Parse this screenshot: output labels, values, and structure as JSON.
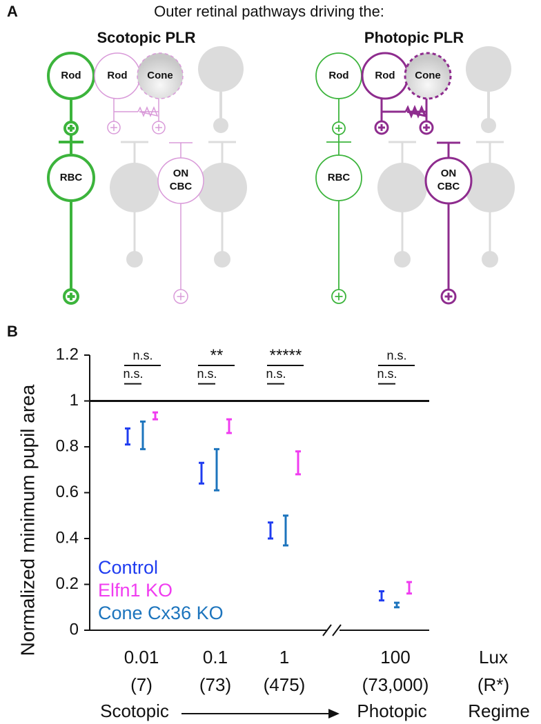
{
  "panel_a": {
    "label": "A",
    "title": "Outer retinal pathways driving the:",
    "panels": [
      {
        "title": "Scotopic PLR",
        "cells": [
          "Rod",
          "Rod",
          "Cone",
          "RBC",
          "ON",
          "CBC"
        ]
      },
      {
        "title": "Photopic PLR",
        "cells": [
          "Rod",
          "Rod",
          "Cone",
          "RBC",
          "ON",
          "CBC"
        ]
      }
    ]
  },
  "chart_data": {
    "type": "errorbar",
    "label": "B",
    "ylabel": "Normalized minimum pupil area",
    "categories": [
      "0.01",
      "0.1",
      "1",
      "100"
    ],
    "r_star": [
      "(7)",
      "(73)",
      "(475)",
      "(73,000)"
    ],
    "extra_labels": [
      "Lux",
      "(R*)",
      "Regime"
    ],
    "regime": [
      "Scotopic",
      "Photopic"
    ],
    "ylim": [
      0,
      1.2
    ],
    "yticks": [
      0,
      0.2,
      0.4,
      0.6,
      0.8,
      1,
      1.2
    ],
    "reference_line": 1,
    "significance_top": [
      "n.s.",
      "**",
      "*****",
      "n.s."
    ],
    "significance_bottom": [
      "n.s.",
      "n.s.",
      "n.s.",
      "n.s."
    ],
    "series": [
      {
        "name": "Control",
        "color": "#1f3cf0",
        "values": [
          0.845,
          0.685,
          0.435,
          0.15
        ],
        "errors": [
          0.035,
          0.045,
          0.035,
          0.02
        ]
      },
      {
        "name": "Elfn1 KO",
        "color": "#f03cf0",
        "values": [
          0.935,
          0.89,
          0.73,
          0.185
        ],
        "errors": [
          0.015,
          0.03,
          0.05,
          0.025
        ]
      },
      {
        "name": "Cone Cx36 KO",
        "color": "#1c74bd",
        "values": [
          0.85,
          0.7,
          0.435,
          0.11
        ],
        "errors": [
          0.06,
          0.09,
          0.065,
          0.01
        ]
      }
    ]
  }
}
